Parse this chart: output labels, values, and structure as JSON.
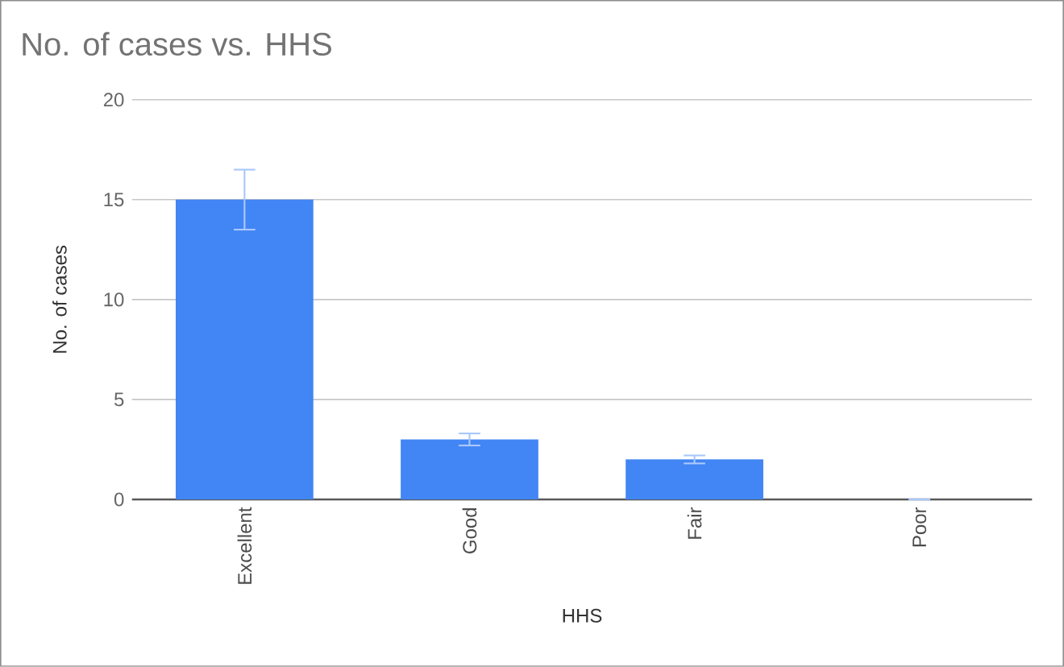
{
  "chart_data": {
    "type": "bar",
    "title": "No. of cases vs. HHS",
    "xlabel": "HHS",
    "ylabel": "No. of cases",
    "categories": [
      "Excellent",
      "Good",
      "Fair",
      "Poor"
    ],
    "values": [
      15,
      3,
      2,
      0
    ],
    "errors": [
      1.5,
      0.3,
      0.2,
      null
    ],
    "color": "#4285f4",
    "ylim": [
      0,
      20
    ],
    "yticks": [
      0,
      5,
      10,
      15,
      20
    ],
    "grid": "y"
  }
}
